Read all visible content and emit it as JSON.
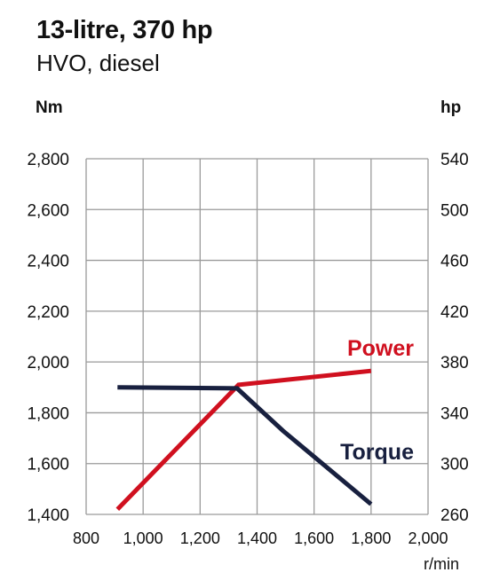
{
  "header": {
    "title": "13-litre, 370 hp",
    "subtitle": "HVO, diesel"
  },
  "chart_data": {
    "type": "line",
    "x": {
      "label": "r/min",
      "range": [
        800,
        2000
      ],
      "ticks": [
        800,
        1000,
        1200,
        1400,
        1600,
        1800,
        2000
      ],
      "tick_labels": [
        "800",
        "1,000",
        "1,200",
        "1,400",
        "1,600",
        "1,800",
        "2,000"
      ]
    },
    "y_left": {
      "label": "Nm",
      "range": [
        1400,
        2800
      ],
      "ticks": [
        1400,
        1600,
        1800,
        2000,
        2200,
        2400,
        2600,
        2800
      ],
      "tick_labels": [
        "1,400",
        "1,600",
        "1,800",
        "2,000",
        "2,200",
        "2,400",
        "2,600",
        "2,800"
      ]
    },
    "y_right": {
      "label": "hp",
      "range": [
        260,
        540
      ],
      "ticks": [
        260,
        300,
        340,
        380,
        420,
        460,
        500,
        540
      ],
      "tick_labels": [
        "260",
        "300",
        "340",
        "380",
        "420",
        "460",
        "500",
        "540"
      ]
    },
    "grid": true,
    "series": [
      {
        "name": "Power",
        "axis": "right",
        "color": "#d0101f",
        "x": [
          910,
          1335,
          1800
        ],
        "y": [
          264,
          362,
          373
        ]
      },
      {
        "name": "Torque",
        "axis": "left",
        "color": "#18203f",
        "x": [
          910,
          1330,
          1490,
          1800
        ],
        "y": [
          1900,
          1896,
          1730,
          1440
        ]
      }
    ]
  }
}
